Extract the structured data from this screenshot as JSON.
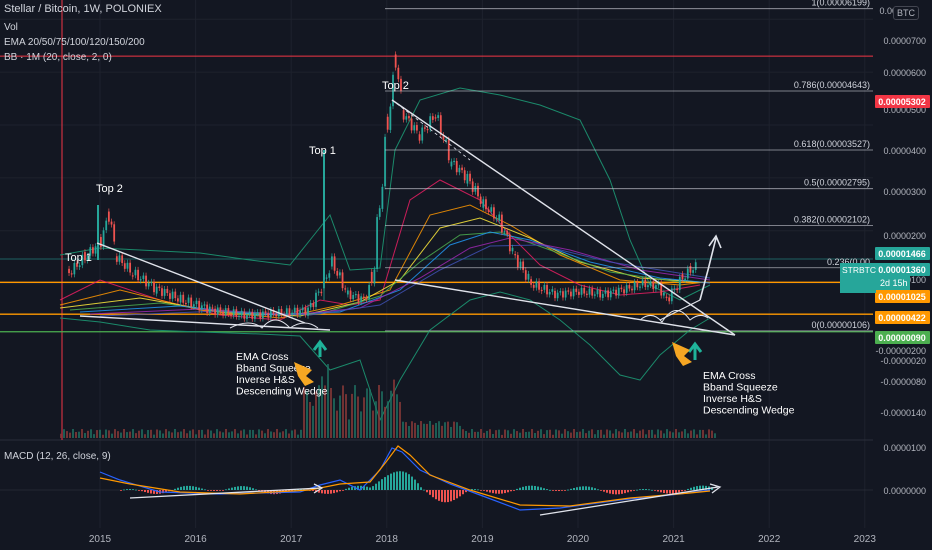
{
  "header": {
    "symbol_line": "Stellar / Bitcoin, 1W, POLONIEX",
    "vol": "Vol",
    "ema": "EMA 20/50/75/100/120/150/200",
    "bb": "BB · 1M (20, close, 2, 0)",
    "macd": "MACD (12, 26, close, 9)",
    "unit": "BTC"
  },
  "colors": {
    "background": "#131722",
    "candle_up": "#26a69a",
    "candle_down": "#ef5350",
    "fib": "#d1d4dc",
    "red_line": "#f23645",
    "orange_line": "#ff9800",
    "green_line": "#4caf50",
    "teal_line": "#26a69a",
    "bb_band": "#1b8a6b"
  },
  "chart_data": {
    "type": "candlestick",
    "x_ticks": [
      "2015",
      "2016",
      "2017",
      "2018",
      "2019",
      "2020",
      "2021",
      "2022",
      "2023"
    ],
    "y_ticks": [
      "0.0000700",
      "0.0000600",
      "0.0000500",
      "0.0000400",
      "0.0000300",
      "0.0000200",
      "0.0000100",
      "-0.0000020",
      "-0.0000080",
      "-0.0000140"
    ],
    "y_ticks_partial": [
      "0.00",
      "0.00",
      "-0.00000200"
    ],
    "macd_ticks": [
      "0.0000100",
      "0.0000000"
    ],
    "price_path": [
      [
        "2014-09",
        1.2e-05
      ],
      [
        "2014-11",
        1.5e-05
      ],
      [
        "2015-01",
        1.8e-05
      ],
      [
        "2015-02",
        2.3e-05
      ],
      [
        "2015-03",
        1.5e-05
      ],
      [
        "2015-05",
        1.2e-05
      ],
      [
        "2015-08",
        9e-06
      ],
      [
        "2015-11",
        7e-06
      ],
      [
        "2016-03",
        5e-06
      ],
      [
        "2016-07",
        4e-06
      ],
      [
        "2016-12",
        4.5e-06
      ],
      [
        "2017-03",
        5e-06
      ],
      [
        "2017-05",
        1e-05
      ],
      [
        "2017-06",
        1.4e-05
      ],
      [
        "2017-08",
        8e-06
      ],
      [
        "2017-10",
        7e-06
      ],
      [
        "2017-11",
        1e-05
      ],
      [
        "2018-01",
        4e-05
      ],
      [
        "2018-02",
        5.2e-05
      ],
      [
        "2018-03",
        4.2e-05
      ],
      [
        "2018-05",
        3.8e-05
      ],
      [
        "2018-07",
        4.2e-05
      ],
      [
        "2018-09",
        3.3e-05
      ],
      [
        "2018-11",
        3e-05
      ],
      [
        "2019-01",
        2.5e-05
      ],
      [
        "2019-03",
        2.2e-05
      ],
      [
        "2019-05",
        1.5e-05
      ],
      [
        "2019-07",
        1e-05
      ],
      [
        "2019-10",
        8e-06
      ],
      [
        "2020-01",
        8.5e-06
      ],
      [
        "2020-04",
        8e-06
      ],
      [
        "2020-07",
        9e-06
      ],
      [
        "2020-09",
        1e-05
      ],
      [
        "2020-11",
        9.5e-06
      ],
      [
        "2020-12",
        7e-06
      ],
      [
        "2021-02",
        1.1e-05
      ],
      [
        "2021-03",
        1.25e-05
      ],
      [
        "2021-04",
        1.36e-05
      ]
    ],
    "fib_levels": [
      {
        "label": "1(0.00006199)",
        "value": 6.199e-05
      },
      {
        "label": "0.786(0.00004643)",
        "value": 4.643e-05
      },
      {
        "label": "0.618(0.00003527)",
        "value": 3.527e-05
      },
      {
        "label": "0.5(0.00002795)",
        "value": 2.795e-05
      },
      {
        "label": "0.382(0.00002102)",
        "value": 2.102e-05
      },
      {
        "label": "0.236(0.00",
        "value": 1.3e-05
      },
      {
        "label": "0(0.00000106)",
        "value": 1.06e-06
      }
    ],
    "price_labels": [
      {
        "text": "0.00005302",
        "color": "#f23645",
        "value": 5.302e-05
      },
      {
        "text": "0.00001466",
        "color": "#26a69a",
        "value": 1.466e-05
      },
      {
        "text": "0.00001360",
        "color": "#26a69a",
        "value": 1.36e-05
      },
      {
        "text": "0.00001025",
        "color": "#ff9800",
        "value": 1.025e-05
      },
      {
        "text": "0.00000422",
        "color": "#ff9800",
        "value": 4.22e-06
      },
      {
        "text": "0.00000090",
        "color": "#4caf50",
        "value": 9e-07
      }
    ],
    "symbol_tag": {
      "name": "STRBTC",
      "countdown": "2d 15h"
    },
    "annotations": {
      "top1_left": "Top 1",
      "top2_left": "Top 2",
      "top1_mid": "Top 1",
      "top2_mid": "Top 2",
      "notes_left": [
        "EMA Cross",
        "Bband Squeeze",
        "Inverse H&S",
        "Descending Wedge"
      ],
      "notes_right": [
        "EMA Cross",
        "Bband Squeeze",
        "Inverse H&S",
        "Descending Wedge"
      ]
    }
  }
}
